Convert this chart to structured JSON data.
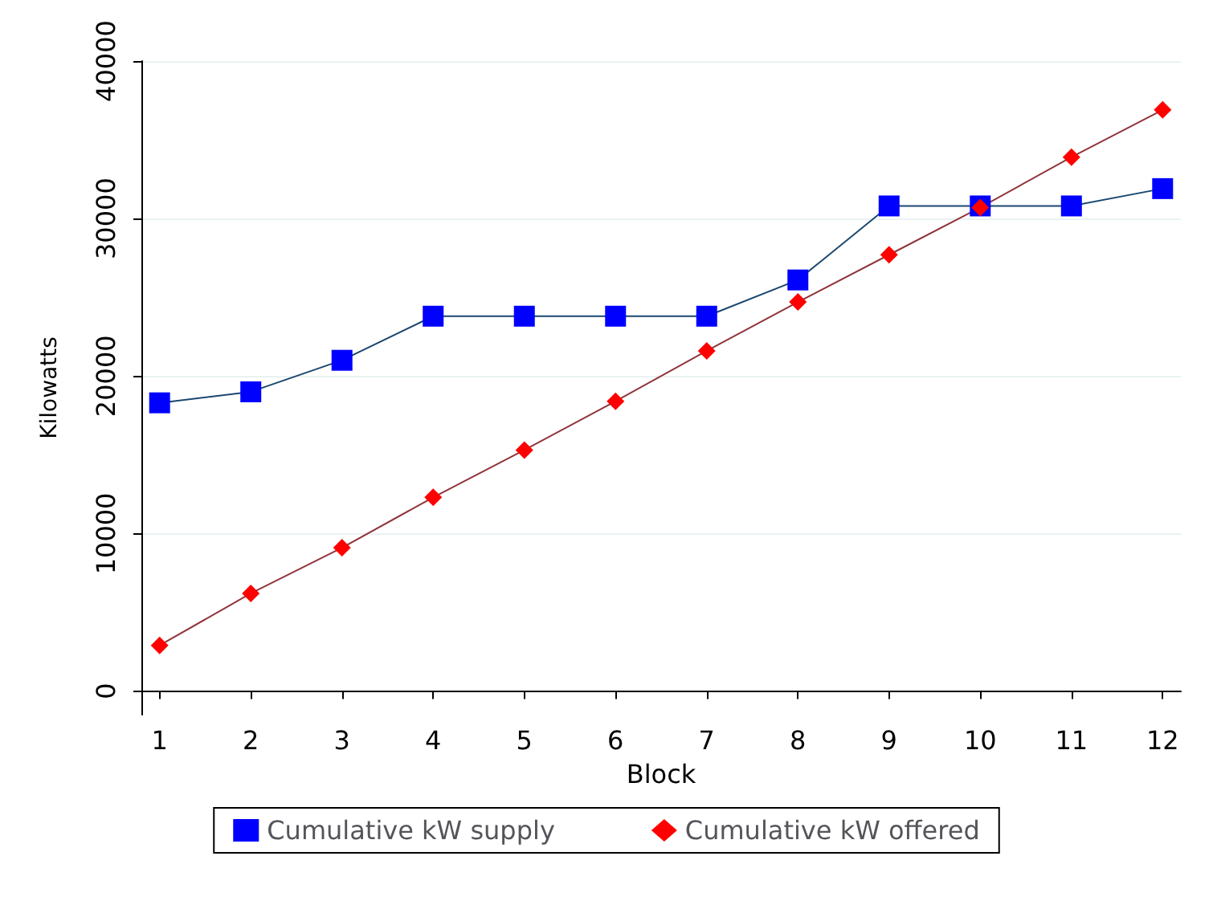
{
  "chart_data": {
    "type": "line",
    "xlabel": "Block",
    "ylabel": "Kilowatts",
    "x": [
      1,
      2,
      3,
      4,
      5,
      6,
      7,
      8,
      9,
      10,
      11,
      12
    ],
    "series": [
      {
        "name": "Cumulative kW supply",
        "color": "#0000ff",
        "marker": "square",
        "values": [
          18300,
          19000,
          21000,
          23800,
          23800,
          23800,
          23800,
          26100,
          30800,
          30800,
          30800,
          31900
        ]
      },
      {
        "name": "Cumulative kW offered",
        "color": "#ff0000",
        "marker": "diamond",
        "values": [
          2900,
          6200,
          9100,
          12300,
          15300,
          18400,
          21600,
          24700,
          27700,
          30700,
          33900,
          36900
        ]
      }
    ],
    "xlim": [
      0.8,
      12.2
    ],
    "xticks": [
      1,
      2,
      3,
      4,
      5,
      6,
      7,
      8,
      9,
      10,
      11,
      12
    ],
    "ylim": [
      -1500,
      40000
    ],
    "yticks": [
      0,
      10000,
      20000,
      30000,
      40000
    ],
    "grid": "y",
    "legend": "bottom",
    "line_style": "solid"
  }
}
